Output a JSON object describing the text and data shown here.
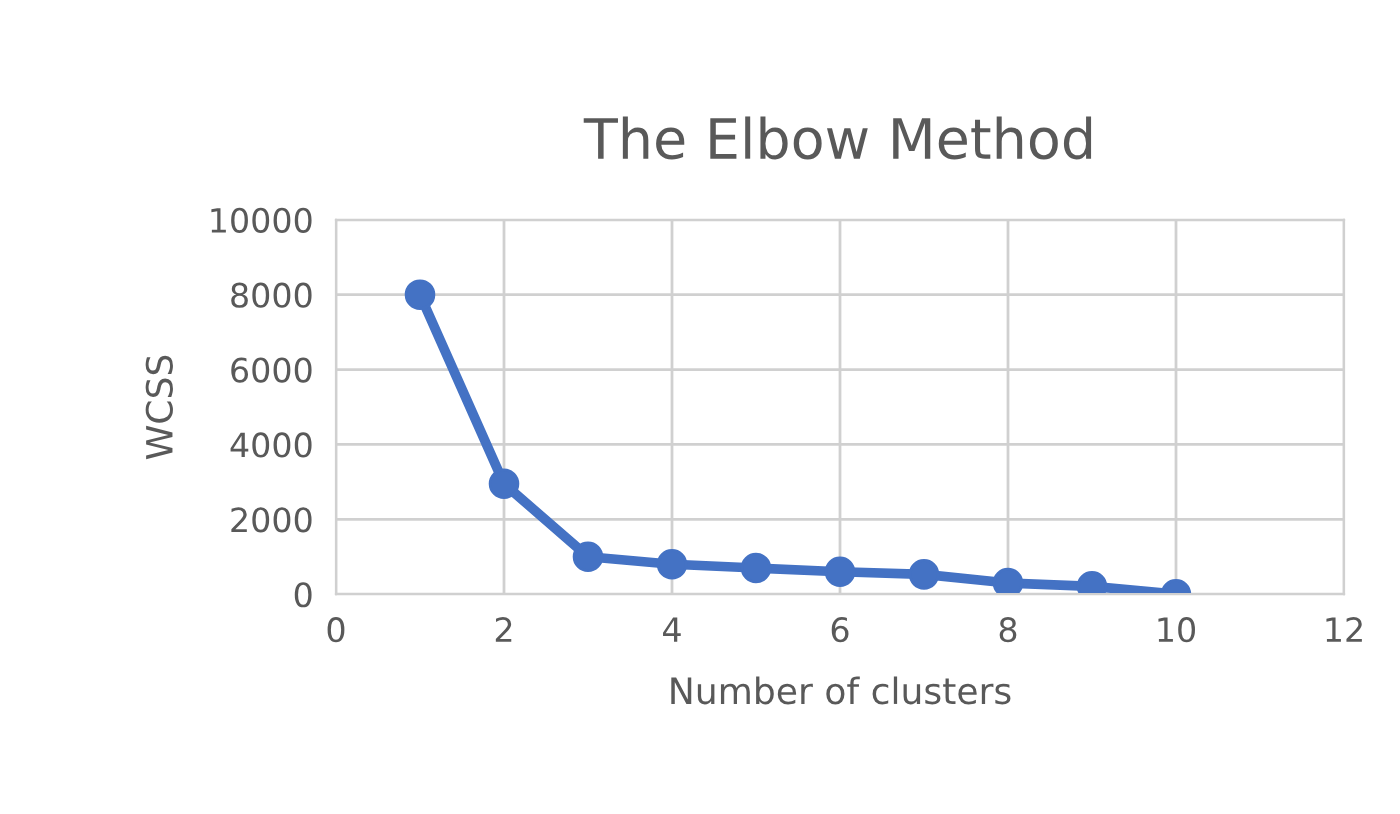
{
  "chart_data": {
    "type": "line",
    "title": "The Elbow Method",
    "xlabel": "Number of clusters",
    "ylabel": "WCSS",
    "x": [
      1,
      2,
      3,
      4,
      5,
      6,
      7,
      8,
      9,
      10
    ],
    "series": [
      {
        "color": "#4472c4",
        "values": [
          8000,
          2950,
          1000,
          800,
          700,
          600,
          530,
          300,
          210,
          0
        ]
      }
    ],
    "xlim": [
      0,
      12
    ],
    "xticks": [
      0,
      2,
      4,
      6,
      8,
      10,
      12
    ],
    "ylim": [
      0,
      10000
    ],
    "yticks": [
      0,
      2000,
      4000,
      6000,
      8000,
      10000
    ],
    "grid": true,
    "marker": "circle",
    "line_style": "solid"
  }
}
